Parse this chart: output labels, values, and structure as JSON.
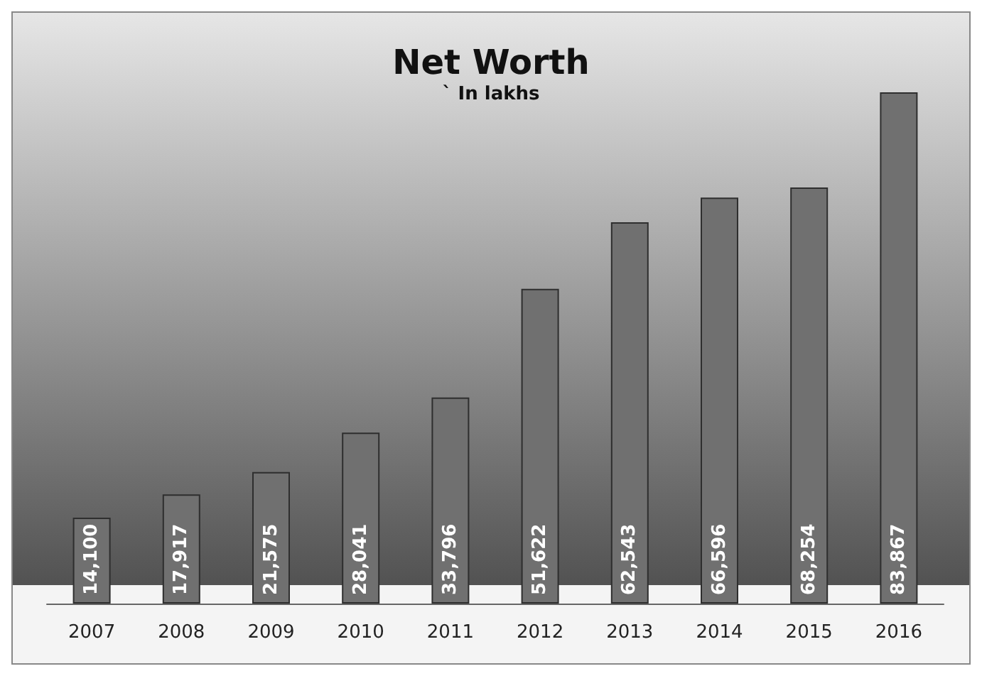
{
  "chart_data": {
    "type": "bar",
    "title": "Net Worth",
    "subtitle": "` In lakhs",
    "categories": [
      "2007",
      "2008",
      "2009",
      "2010",
      "2011",
      "2012",
      "2013",
      "2014",
      "2015",
      "2016"
    ],
    "values": [
      14100,
      17917,
      21575,
      28041,
      33796,
      51622,
      62543,
      66596,
      68254,
      83867
    ],
    "value_labels": [
      "14,100",
      "17,917",
      "21,575",
      "28,041",
      "33,796",
      "51,622",
      "62,543",
      "66,596",
      "68,254",
      "83,867"
    ],
    "color": "#707070"
  }
}
